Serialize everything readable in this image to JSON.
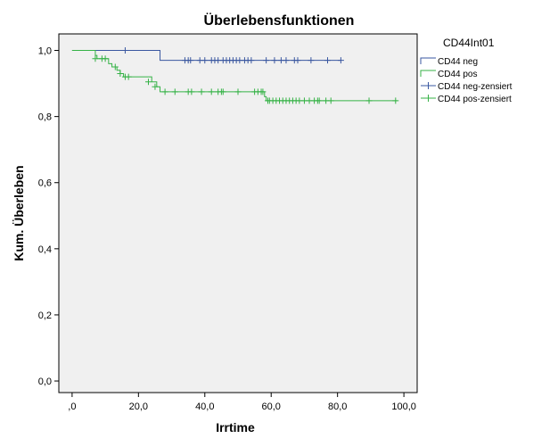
{
  "chart_data": {
    "type": "line",
    "title": "Überlebensfunktionen",
    "xlabel": "Irrtime",
    "ylabel": "Kum. Überleben",
    "xlim": [
      -4,
      104
    ],
    "ylim": [
      -0.035,
      1.05
    ],
    "x_ticks": [
      0,
      20,
      40,
      60,
      80,
      100
    ],
    "x_tick_labels": [
      ",0",
      "20,0",
      "40,0",
      "60,0",
      "80,0",
      "100,0"
    ],
    "y_ticks": [
      0,
      0.2,
      0.4,
      0.6,
      0.8,
      1.0
    ],
    "y_tick_labels": [
      "0,0",
      "0,2",
      "0,4",
      "0,6",
      "0,8",
      "1,0"
    ],
    "grid": false,
    "plot_background": "#f0f0f0",
    "legend": {
      "title": "CD44Int01",
      "placement": "right",
      "entries": [
        {
          "label": "CD44 neg",
          "color": "#3a57a0",
          "symbol": "step"
        },
        {
          "label": "CD44 pos",
          "color": "#35b246",
          "symbol": "step"
        },
        {
          "label": "CD44 neg-zensiert",
          "color": "#3a57a0",
          "symbol": "plus"
        },
        {
          "label": "CD44 pos-zensiert",
          "color": "#35b246",
          "symbol": "plus"
        }
      ]
    },
    "series": [
      {
        "name": "CD44 neg",
        "color": "#3a57a0",
        "steps": [
          [
            0,
            1.0
          ],
          [
            26.5,
            0.97
          ],
          [
            81,
            0.97
          ]
        ],
        "censored": [
          [
            16,
            1.0
          ],
          [
            34,
            0.97
          ],
          [
            35,
            0.97
          ],
          [
            35.7,
            0.97
          ],
          [
            38.5,
            0.97
          ],
          [
            40,
            0.97
          ],
          [
            42,
            0.97
          ],
          [
            43,
            0.97
          ],
          [
            44,
            0.97
          ],
          [
            45.5,
            0.97
          ],
          [
            46.5,
            0.97
          ],
          [
            47.5,
            0.97
          ],
          [
            48.5,
            0.97
          ],
          [
            49.5,
            0.97
          ],
          [
            50.5,
            0.97
          ],
          [
            52,
            0.97
          ],
          [
            53,
            0.97
          ],
          [
            54,
            0.97
          ],
          [
            58.5,
            0.97
          ],
          [
            61,
            0.97
          ],
          [
            63,
            0.97
          ],
          [
            64.5,
            0.97
          ],
          [
            67,
            0.97
          ],
          [
            68,
            0.97
          ],
          [
            72,
            0.97
          ],
          [
            77,
            0.97
          ],
          [
            81,
            0.97
          ]
        ]
      },
      {
        "name": "CD44 pos",
        "color": "#35b246",
        "steps": [
          [
            0,
            1.0
          ],
          [
            7,
            0.985
          ],
          [
            7.5,
            0.975
          ],
          [
            11,
            0.96
          ],
          [
            12,
            0.95
          ],
          [
            13.5,
            0.94
          ],
          [
            14.5,
            0.93
          ],
          [
            15.5,
            0.92
          ],
          [
            24,
            0.905
          ],
          [
            25.5,
            0.89
          ],
          [
            26.5,
            0.875
          ],
          [
            58,
            0.86
          ],
          [
            58.5,
            0.848
          ],
          [
            98,
            0.848
          ]
        ],
        "censored": [
          [
            7,
            0.975
          ],
          [
            9,
            0.975
          ],
          [
            10,
            0.975
          ],
          [
            13,
            0.95
          ],
          [
            14.5,
            0.93
          ],
          [
            16,
            0.92
          ],
          [
            17,
            0.92
          ],
          [
            23,
            0.905
          ],
          [
            25,
            0.89
          ],
          [
            28,
            0.875
          ],
          [
            31,
            0.875
          ],
          [
            35,
            0.875
          ],
          [
            36,
            0.875
          ],
          [
            39,
            0.875
          ],
          [
            42,
            0.875
          ],
          [
            44,
            0.875
          ],
          [
            45,
            0.875
          ],
          [
            45.5,
            0.875
          ],
          [
            50,
            0.875
          ],
          [
            55,
            0.875
          ],
          [
            56,
            0.875
          ],
          [
            57,
            0.875
          ],
          [
            57.5,
            0.875
          ],
          [
            59,
            0.848
          ],
          [
            59.5,
            0.848
          ],
          [
            60.5,
            0.848
          ],
          [
            61.5,
            0.848
          ],
          [
            62.5,
            0.848
          ],
          [
            63.5,
            0.848
          ],
          [
            64.5,
            0.848
          ],
          [
            65.5,
            0.848
          ],
          [
            66.5,
            0.848
          ],
          [
            67.5,
            0.848
          ],
          [
            68.5,
            0.848
          ],
          [
            70,
            0.848
          ],
          [
            71.5,
            0.848
          ],
          [
            73,
            0.848
          ],
          [
            74,
            0.848
          ],
          [
            74.5,
            0.848
          ],
          [
            76.5,
            0.848
          ],
          [
            78,
            0.848
          ],
          [
            89.5,
            0.848
          ],
          [
            97.5,
            0.848
          ]
        ]
      }
    ]
  }
}
